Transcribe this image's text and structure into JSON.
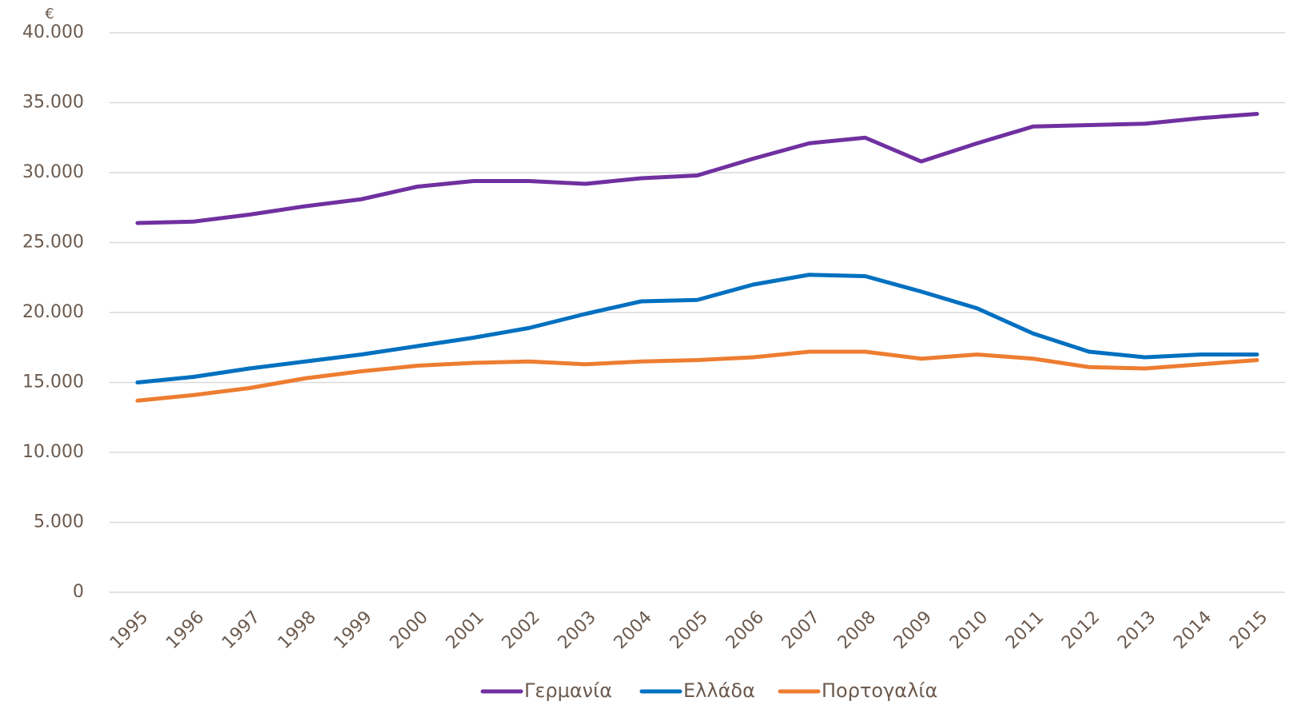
{
  "chart_data": {
    "type": "line",
    "ylabel": "€",
    "categories": [
      "1995",
      "1996",
      "1997",
      "1998",
      "1999",
      "2000",
      "2001",
      "2002",
      "2003",
      "2004",
      "2005",
      "2006",
      "2007",
      "2008",
      "2009",
      "2010",
      "2011",
      "2012",
      "2013",
      "2014",
      "2015"
    ],
    "series": [
      {
        "name": "Γερμανία",
        "color": "#7030a0",
        "values": [
          26400,
          26500,
          27000,
          27600,
          28100,
          29000,
          29400,
          29400,
          29200,
          29600,
          29800,
          31000,
          32100,
          32500,
          30800,
          32100,
          33300,
          33400,
          33500,
          33900,
          34200
        ]
      },
      {
        "name": "Ελλάδα",
        "color": "#0070c0",
        "values": [
          15000,
          15400,
          16000,
          16500,
          17000,
          17600,
          18200,
          18900,
          19900,
          20800,
          20900,
          22000,
          22700,
          22600,
          21500,
          20300,
          18500,
          17200,
          16800,
          17000,
          17000
        ]
      },
      {
        "name": "Πορτογαλία",
        "color": "#ed7d31",
        "values": [
          13700,
          14100,
          14600,
          15300,
          15800,
          16200,
          16400,
          16500,
          16300,
          16500,
          16600,
          16800,
          17200,
          17200,
          16700,
          17000,
          16700,
          16100,
          16000,
          16300,
          16600
        ]
      }
    ],
    "ylim": [
      0,
      40000
    ],
    "yticks": [
      0,
      {
        "value": 5000,
        "label": "5.000"
      },
      {
        "value": 10000,
        "label": "10.000"
      },
      {
        "value": 15000,
        "label": "15.000"
      },
      {
        "value": 20000,
        "label": "20.000"
      },
      {
        "value": 25000,
        "label": "25.000"
      },
      {
        "value": 30000,
        "label": "30.000"
      },
      {
        "value": 35000,
        "label": "35.000"
      },
      {
        "value": 40000,
        "label": "40.000"
      }
    ],
    "grid": true,
    "legend": "bottom"
  }
}
